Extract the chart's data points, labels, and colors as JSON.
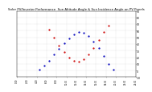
{
  "title": "Solar PV/Inverter Performance  Sun Altitude Angle & Sun Incidence Angle on PV Panels",
  "title_fontsize": 2.8,
  "blue_color": "#0000BB",
  "red_color": "#CC0000",
  "xlim": [
    0,
    24
  ],
  "ylim": [
    -10,
    90
  ],
  "yticks": [
    -10,
    0,
    10,
    20,
    30,
    40,
    50,
    60,
    70,
    80,
    90
  ],
  "ytick_fontsize": 2.2,
  "xtick_fontsize": 1.8,
  "grid_color": "#aaaaaa",
  "background_color": "#ffffff",
  "blue_x": [
    4.5,
    5.5,
    6.5,
    7.5,
    8.5,
    9.5,
    10.5,
    11.5,
    12.5,
    13.5,
    14.5,
    15.5,
    16.5,
    17.5,
    18.5,
    19.5
  ],
  "blue_y": [
    2,
    8,
    15,
    24,
    33,
    41,
    49,
    55,
    58,
    57,
    52,
    44,
    34,
    22,
    10,
    1
  ],
  "red_x": [
    6.5,
    7.5,
    8.5,
    9.5,
    10.5,
    11.5,
    12.5,
    13.5,
    14.5,
    15.5,
    16.5,
    17.5,
    18.5
  ],
  "red_y": [
    62,
    50,
    38,
    28,
    20,
    15,
    14,
    17,
    24,
    34,
    46,
    58,
    68
  ],
  "xtick_positions": [
    0,
    2,
    4,
    6,
    8,
    10,
    12,
    14,
    16,
    18,
    20,
    22,
    24
  ],
  "xtick_labels": [
    "0:00",
    "2:00",
    "4:00",
    "6:00",
    "8:00",
    "10:00",
    "12:00",
    "14:00",
    "16:00",
    "18:00",
    "20:00",
    "22:00",
    "24:00"
  ],
  "marker_size": 1.2
}
